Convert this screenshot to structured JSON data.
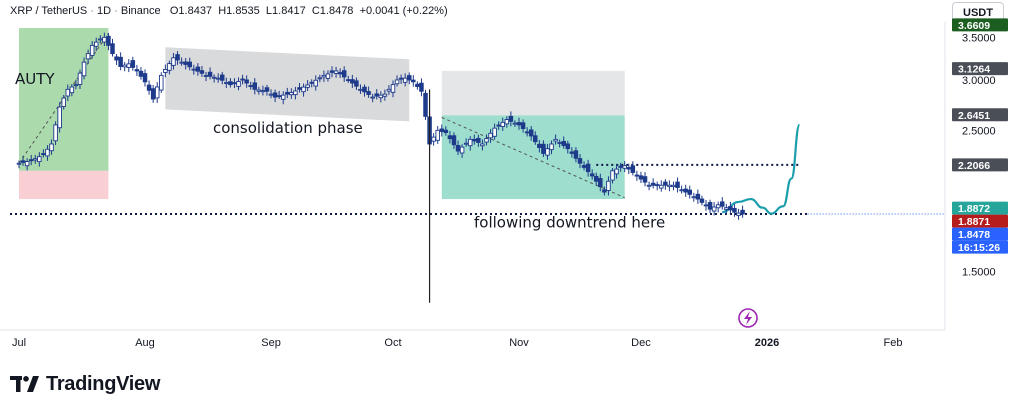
{
  "header": {
    "symbol": "XRP / TetherUS",
    "interval": "1D",
    "exchange": "Binance",
    "o_label": "O",
    "open": "1.8437",
    "h_label": "H",
    "high": "1.8535",
    "l_label": "L",
    "low": "1.8417",
    "c_label": "C",
    "close": "1.8478",
    "change": "+0.0041 (+0.22%)"
  },
  "currency_button": "USDT",
  "annotations": {
    "left_box_text": "AUTY",
    "consolidation": "consolidation phase",
    "downtrend": "following downtrend here"
  },
  "brand": {
    "name": "TradingView"
  },
  "colors": {
    "up": "#26a69a",
    "down": "#ef5350",
    "candle": "#1e3a8a",
    "zone_green": "#66bb6a",
    "zone_red": "#f4a7b0",
    "zone_grey": "#b8bcc0",
    "zone_teal": "#4fc3a8",
    "curve": "#1a9dac",
    "lightning": "#9c27b0"
  },
  "chart_data": {
    "type": "candlestick",
    "y_axis": {
      "ticks": [
        "3.5000",
        "3.0000",
        "2.5000",
        "1.5000"
      ],
      "ylim": [
        1.25,
        3.7
      ],
      "scale": "log"
    },
    "x_axis": {
      "ticks": [
        "Jul",
        "Aug",
        "Sep",
        "Oct",
        "Nov",
        "Dec",
        "2026",
        "Feb"
      ]
    },
    "price_tags": [
      {
        "value": "3.6609",
        "bg": "#1b5e20",
        "fg": "#ffffff"
      },
      {
        "value": "3.1264",
        "bg": "#4a4e57",
        "fg": "#ffffff"
      },
      {
        "value": "2.6451",
        "bg": "#4a4e57",
        "fg": "#ffffff"
      },
      {
        "value": "2.2066",
        "bg": "#4a4e57",
        "fg": "#ffffff"
      },
      {
        "value": "1.8872",
        "bg": "#26a69a",
        "fg": "#ffffff"
      },
      {
        "value": "1.8871",
        "bg": "#b71c1c",
        "fg": "#ffffff"
      },
      {
        "value": "1.8478",
        "bg": "#2962ff",
        "fg": "#ffffff"
      },
      {
        "value": "16:15:26",
        "bg": "#2962ff",
        "fg": "#ffffff"
      }
    ],
    "last_price": 1.8478,
    "resistance_level": 2.2066,
    "support_level": 1.8478,
    "months": [
      {
        "label": "Jul",
        "date": "2025-07-01"
      },
      {
        "label": "Aug",
        "date": "2025-08-01"
      },
      {
        "label": "Sep",
        "date": "2025-09-01"
      },
      {
        "label": "Oct",
        "date": "2025-10-01"
      },
      {
        "label": "Nov",
        "date": "2025-11-01"
      },
      {
        "label": "Dec",
        "date": "2025-12-01"
      },
      {
        "label": "2026",
        "date": "2026-01-01"
      },
      {
        "label": "Feb",
        "date": "2026-02-01"
      }
    ],
    "closes": [
      [
        "2025-07-01",
        2.22
      ],
      [
        "2025-07-04",
        2.24
      ],
      [
        "2025-07-07",
        2.29
      ],
      [
        "2025-07-09",
        2.38
      ],
      [
        "2025-07-11",
        2.72
      ],
      [
        "2025-07-13",
        2.9
      ],
      [
        "2025-07-15",
        2.95
      ],
      [
        "2025-07-17",
        3.2
      ],
      [
        "2025-07-19",
        3.4
      ],
      [
        "2025-07-21",
        3.48
      ],
      [
        "2025-07-22",
        3.5
      ],
      [
        "2025-07-24",
        3.3
      ],
      [
        "2025-07-26",
        3.15
      ],
      [
        "2025-07-28",
        3.18
      ],
      [
        "2025-07-30",
        3.1
      ],
      [
        "2025-08-01",
        2.98
      ],
      [
        "2025-08-03",
        2.8
      ],
      [
        "2025-08-05",
        3.05
      ],
      [
        "2025-08-08",
        3.25
      ],
      [
        "2025-08-10",
        3.2
      ],
      [
        "2025-08-13",
        3.12
      ],
      [
        "2025-08-16",
        3.05
      ],
      [
        "2025-08-19",
        3.02
      ],
      [
        "2025-08-22",
        2.95
      ],
      [
        "2025-08-25",
        3.0
      ],
      [
        "2025-08-28",
        2.9
      ],
      [
        "2025-08-31",
        2.88
      ],
      [
        "2025-09-02",
        2.82
      ],
      [
        "2025-09-05",
        2.85
      ],
      [
        "2025-09-08",
        2.9
      ],
      [
        "2025-09-11",
        2.97
      ],
      [
        "2025-09-14",
        3.05
      ],
      [
        "2025-09-17",
        3.1
      ],
      [
        "2025-09-20",
        3.0
      ],
      [
        "2025-09-23",
        2.9
      ],
      [
        "2025-09-26",
        2.82
      ],
      [
        "2025-09-29",
        2.85
      ],
      [
        "2025-10-02",
        3.0
      ],
      [
        "2025-10-04",
        3.02
      ],
      [
        "2025-10-06",
        2.98
      ],
      [
        "2025-10-08",
        2.88
      ],
      [
        "2025-10-10",
        2.38
      ],
      [
        "2025-10-12",
        2.5
      ],
      [
        "2025-10-14",
        2.48
      ],
      [
        "2025-10-17",
        2.32
      ],
      [
        "2025-10-20",
        2.42
      ],
      [
        "2025-10-23",
        2.38
      ],
      [
        "2025-10-26",
        2.52
      ],
      [
        "2025-10-29",
        2.6
      ],
      [
        "2025-11-01",
        2.55
      ],
      [
        "2025-11-04",
        2.45
      ],
      [
        "2025-11-07",
        2.3
      ],
      [
        "2025-11-10",
        2.42
      ],
      [
        "2025-11-13",
        2.34
      ],
      [
        "2025-11-16",
        2.22
      ],
      [
        "2025-11-19",
        2.12
      ],
      [
        "2025-11-22",
        2.0
      ],
      [
        "2025-11-24",
        2.16
      ],
      [
        "2025-11-27",
        2.2
      ],
      [
        "2025-11-30",
        2.12
      ],
      [
        "2025-12-03",
        2.05
      ],
      [
        "2025-12-06",
        2.05
      ],
      [
        "2025-12-09",
        2.05
      ],
      [
        "2025-12-12",
        2.0
      ],
      [
        "2025-12-15",
        1.95
      ],
      [
        "2025-12-18",
        1.88
      ],
      [
        "2025-12-20",
        1.91
      ],
      [
        "2025-12-22",
        1.89
      ],
      [
        "2025-12-24",
        1.86
      ],
      [
        "2025-12-26",
        1.8478
      ]
    ],
    "candle_dates": [
      "2025-07-01",
      "2025-07-05",
      "2025-07-09",
      "2025-07-13",
      "2025-07-17",
      "2025-07-21",
      "2025-07-25",
      "2025-07-29",
      "2025-08-02",
      "2025-08-06",
      "2025-08-10",
      "2025-08-14",
      "2025-08-18",
      "2025-08-22",
      "2025-08-26",
      "2025-08-30",
      "2025-09-03",
      "2025-09-07",
      "2025-09-11",
      "2025-09-15",
      "2025-09-19",
      "2025-09-23",
      "2025-09-27",
      "2025-10-01",
      "2025-10-05",
      "2025-10-09",
      "2025-10-11",
      "2025-10-15",
      "2025-10-19",
      "2025-10-23",
      "2025-10-27",
      "2025-10-31",
      "2025-11-04",
      "2025-11-08",
      "2025-11-12",
      "2025-11-16",
      "2025-11-20",
      "2025-11-24",
      "2025-11-28",
      "2025-12-02",
      "2025-12-06",
      "2025-12-10",
      "2025-12-14",
      "2025-12-18",
      "2025-12-22",
      "2025-12-26"
    ],
    "spike_low": {
      "date": "2025-10-10",
      "value": 1.34
    },
    "zones": [
      {
        "name": "left-green",
        "x": [
          "2025-07-01",
          "2025-07-23"
        ],
        "y": [
          2.16,
          3.62
        ],
        "color": "#66bb6a"
      },
      {
        "name": "left-red",
        "x": [
          "2025-07-01",
          "2025-07-23"
        ],
        "y": [
          1.95,
          2.16
        ],
        "color": "#f4a7b0"
      },
      {
        "name": "consolidation",
        "x": [
          "2025-08-06",
          "2025-10-05"
        ],
        "y": [
          2.62,
          3.28
        ],
        "color": "#b8bcc0"
      },
      {
        "name": "projection-grey",
        "x": [
          "2025-10-13",
          "2025-11-27"
        ],
        "y": [
          2.64,
          3.1
        ],
        "color": "#cfd2d5"
      },
      {
        "name": "projection-teal",
        "x": [
          "2025-10-13",
          "2025-11-27"
        ],
        "y": [
          1.95,
          2.64
        ],
        "color": "#4fc3a8"
      }
    ],
    "projection_curve": [
      [
        "2025-12-21",
        1.86
      ],
      [
        "2025-12-25",
        1.93
      ],
      [
        "2025-12-28",
        1.95
      ],
      [
        "2025-12-31",
        1.89
      ],
      [
        "2026-01-02",
        1.85
      ],
      [
        "2026-01-05",
        1.9
      ],
      [
        "2026-01-07",
        2.1
      ],
      [
        "2026-01-09",
        2.55
      ]
    ]
  }
}
